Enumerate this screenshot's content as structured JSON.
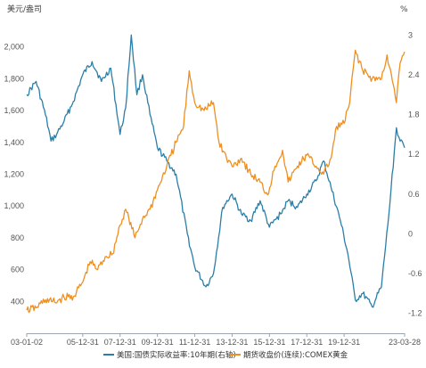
{
  "chart_data": {
    "type": "line",
    "title": "",
    "left_axis": {
      "unit": "美元/盎司",
      "ylim": [
        200,
        2200
      ],
      "ticks": [
        400,
        600,
        800,
        1000,
        1200,
        1400,
        1600,
        1800,
        2000
      ],
      "tick_labels": [
        "400",
        "600",
        "800",
        "1,000",
        "1,200",
        "1,400",
        "1,600",
        "1,800",
        "2,000"
      ]
    },
    "right_axis": {
      "unit": "%",
      "ylim": [
        -1.5,
        3.3
      ],
      "ticks": [
        -1.2,
        -0.6,
        0,
        0.6,
        1.2,
        1.8,
        2.4,
        3
      ],
      "tick_labels": [
        "-1.2",
        "-0.6",
        "0",
        "0.6",
        "1.2",
        "1.8",
        "2.4",
        "3"
      ]
    },
    "x_tick_labels": [
      "03-01-02",
      "05-12-31",
      "07-12-31",
      "09-12-31",
      "11-12-31",
      "13-12-31",
      "15-12-31",
      "17-12-31",
      "19-12-31",
      "23-03-28"
    ],
    "x_ticks_year": [
      2003.0,
      2006.0,
      2008.0,
      2010.0,
      2012.0,
      2014.0,
      2016.0,
      2018.0,
      2020.0,
      2023.24
    ],
    "xlim_year": [
      2003.0,
      2023.24
    ],
    "grid": false,
    "legend_position": "bottom",
    "series": [
      {
        "name": "美国:国债实际收益率:10年期(右轴)",
        "axis": "right",
        "color": "#2b7ea6",
        "x_year": [
          2003.0,
          2003.5,
          2004.0,
          2004.3,
          2004.6,
          2005.0,
          2005.5,
          2006.0,
          2006.5,
          2007.0,
          2007.5,
          2008.0,
          2008.3,
          2008.6,
          2008.9,
          2009.2,
          2009.6,
          2010.0,
          2010.5,
          2011.0,
          2011.6,
          2012.0,
          2012.6,
          2013.0,
          2013.5,
          2014.0,
          2014.5,
          2015.0,
          2015.5,
          2016.0,
          2016.6,
          2017.0,
          2017.5,
          2018.0,
          2018.5,
          2018.9,
          2019.3,
          2019.8,
          2020.2,
          2020.6,
          2021.0,
          2021.5,
          2022.0,
          2022.4,
          2022.8,
          2023.0,
          2023.24
        ],
        "values": [
          2.1,
          2.3,
          1.8,
          1.4,
          1.5,
          1.7,
          2.0,
          2.4,
          2.6,
          2.3,
          2.5,
          1.5,
          1.9,
          3.0,
          2.1,
          2.4,
          1.8,
          1.3,
          1.1,
          0.9,
          0.0,
          -0.5,
          -0.8,
          -0.6,
          0.4,
          0.6,
          0.3,
          0.2,
          0.5,
          0.1,
          0.3,
          0.5,
          0.4,
          0.6,
          0.8,
          1.1,
          0.7,
          0.2,
          -0.3,
          -1.0,
          -0.9,
          -1.1,
          -0.8,
          0.3,
          1.6,
          1.4,
          1.3
        ]
      },
      {
        "name": "期货收盘价(连续):COMEX黄金",
        "axis": "left",
        "color": "#ee8f20",
        "x_year": [
          2003.0,
          2003.5,
          2004.0,
          2004.5,
          2005.0,
          2005.5,
          2006.0,
          2006.4,
          2006.8,
          2007.2,
          2007.6,
          2008.0,
          2008.3,
          2008.8,
          2009.2,
          2009.6,
          2010.0,
          2010.5,
          2011.0,
          2011.4,
          2011.7,
          2012.0,
          2012.5,
          2013.0,
          2013.3,
          2013.7,
          2014.0,
          2014.5,
          2015.0,
          2015.5,
          2015.9,
          2016.3,
          2016.7,
          2017.0,
          2017.5,
          2018.0,
          2018.5,
          2018.9,
          2019.3,
          2019.6,
          2020.0,
          2020.3,
          2020.6,
          2021.0,
          2021.5,
          2022.0,
          2022.3,
          2022.8,
          2023.0,
          2023.24
        ],
        "values": [
          345,
          360,
          410,
          395,
          425,
          430,
          520,
          650,
          600,
          680,
          700,
          880,
          980,
          800,
          920,
          980,
          1100,
          1250,
          1400,
          1500,
          1850,
          1650,
          1600,
          1650,
          1400,
          1300,
          1250,
          1300,
          1200,
          1150,
          1070,
          1250,
          1350,
          1150,
          1250,
          1320,
          1250,
          1200,
          1300,
          1500,
          1520,
          1650,
          1980,
          1850,
          1800,
          1800,
          1950,
          1650,
          1900,
          1970
        ]
      }
    ]
  }
}
